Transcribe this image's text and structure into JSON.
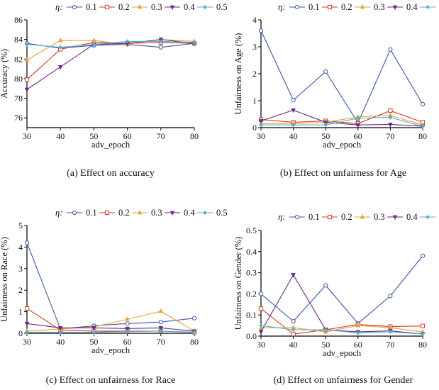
{
  "legend": {
    "title": "η:",
    "entries": [
      {
        "label": "0.1",
        "color": "#3a56a8",
        "marker": "circle"
      },
      {
        "label": "0.2",
        "color": "#d03a2a",
        "marker": "square"
      },
      {
        "label": "0.3",
        "color": "#e8a23a",
        "marker": "triangle"
      },
      {
        "label": "0.4",
        "color": "#6a2a8a",
        "marker": "triangle-down"
      },
      {
        "label": "0.5",
        "color": "#4fb3c8",
        "marker": "diamond"
      }
    ]
  },
  "chart_data": [
    {
      "type": "line",
      "caption": "(a)  Effect on accuracy",
      "xlabel": "adv_epoch",
      "ylabel": "Accuracy (%)",
      "x": [
        30,
        40,
        50,
        60,
        70,
        80
      ],
      "xlim": [
        30,
        80
      ],
      "ylim": [
        75,
        86
      ],
      "yticks": [
        76,
        78,
        80,
        82,
        84,
        86
      ],
      "grid": false,
      "legend_position": "top",
      "series": [
        {
          "name": "0.1",
          "values": [
            83.6,
            83.1,
            83.4,
            83.5,
            83.2,
            83.6
          ]
        },
        {
          "name": "0.2",
          "values": [
            79.9,
            83.0,
            83.7,
            83.6,
            83.7,
            83.6
          ]
        },
        {
          "name": "0.3",
          "values": [
            81.9,
            83.9,
            83.9,
            83.5,
            84.0,
            83.8
          ]
        },
        {
          "name": "0.4",
          "values": [
            78.9,
            81.2,
            83.5,
            83.6,
            84.0,
            83.6
          ]
        },
        {
          "name": "0.5",
          "values": [
            83.5,
            83.2,
            83.5,
            83.8,
            83.8,
            83.7
          ]
        }
      ]
    },
    {
      "type": "line",
      "caption": "(b)  Effect on unfairness for Age",
      "xlabel": "adv_epoch",
      "ylabel": "Unfairness on Age (%)",
      "x": [
        30,
        40,
        50,
        60,
        70,
        80
      ],
      "xlim": [
        30,
        80
      ],
      "ylim": [
        0,
        4
      ],
      "yticks": [
        0,
        1,
        2,
        3,
        4
      ],
      "grid": false,
      "legend_position": "top",
      "series": [
        {
          "name": "0.1",
          "values": [
            3.6,
            1.02,
            2.08,
            0.18,
            2.9,
            0.87
          ]
        },
        {
          "name": "0.2",
          "values": [
            0.3,
            0.2,
            0.25,
            0.15,
            0.63,
            0.2
          ]
        },
        {
          "name": "0.3",
          "values": [
            0.15,
            0.15,
            0.2,
            0.4,
            0.45,
            0.1
          ]
        },
        {
          "name": "0.4",
          "values": [
            0.25,
            0.65,
            0.2,
            0.1,
            0.12,
            0.05
          ]
        },
        {
          "name": "0.5",
          "values": [
            0.1,
            0.1,
            0.1,
            0.35,
            0.38,
            0.05
          ]
        }
      ]
    },
    {
      "type": "line",
      "caption": "(c)  Effect on unfairness for Race",
      "xlabel": "adv_epoch",
      "ylabel": "Unfairness on Race (%)",
      "x": [
        30,
        40,
        50,
        60,
        70,
        80
      ],
      "xlim": [
        30,
        80
      ],
      "ylim": [
        0,
        5
      ],
      "yticks": [
        0,
        1,
        2,
        3,
        4,
        5
      ],
      "grid": false,
      "legend_position": "top",
      "series": [
        {
          "name": "0.1",
          "values": [
            4.2,
            0.2,
            0.35,
            0.45,
            0.52,
            0.7
          ]
        },
        {
          "name": "0.2",
          "values": [
            1.15,
            0.15,
            0.1,
            0.1,
            0.1,
            0.05
          ]
        },
        {
          "name": "0.3",
          "values": [
            0.1,
            0.2,
            0.3,
            0.65,
            1.02,
            0.1
          ]
        },
        {
          "name": "0.4",
          "values": [
            0.45,
            0.25,
            0.25,
            0.22,
            0.25,
            0.1
          ]
        },
        {
          "name": "0.5",
          "values": [
            0.05,
            0.05,
            0.05,
            0.08,
            0.1,
            0.05
          ]
        }
      ]
    },
    {
      "type": "line",
      "caption": "(d)  Effect on unfairness for Gender",
      "xlabel": "adv_epoch",
      "ylabel": "Unfairness on Gender (%)",
      "x": [
        30,
        40,
        50,
        60,
        70,
        80
      ],
      "xlim": [
        30,
        80
      ],
      "ylim": [
        0,
        0.5
      ],
      "yticks": [
        0.0,
        0.1,
        0.2,
        0.3,
        0.4,
        0.5
      ],
      "grid": false,
      "legend_position": "top",
      "series": [
        {
          "name": "0.1",
          "values": [
            0.2,
            0.07,
            0.24,
            0.06,
            0.19,
            0.38
          ]
        },
        {
          "name": "0.2",
          "values": [
            0.13,
            0.01,
            0.03,
            0.055,
            0.045,
            0.048
          ]
        },
        {
          "name": "0.3",
          "values": [
            0.04,
            0.04,
            0.02,
            0.05,
            0.04,
            0.02
          ]
        },
        {
          "name": "0.4",
          "values": [
            0.02,
            0.29,
            0.03,
            0.02,
            0.025,
            0.01
          ]
        },
        {
          "name": "0.5",
          "values": [
            0.05,
            0.03,
            0.03,
            0.015,
            0.02,
            0.01
          ]
        }
      ]
    }
  ]
}
